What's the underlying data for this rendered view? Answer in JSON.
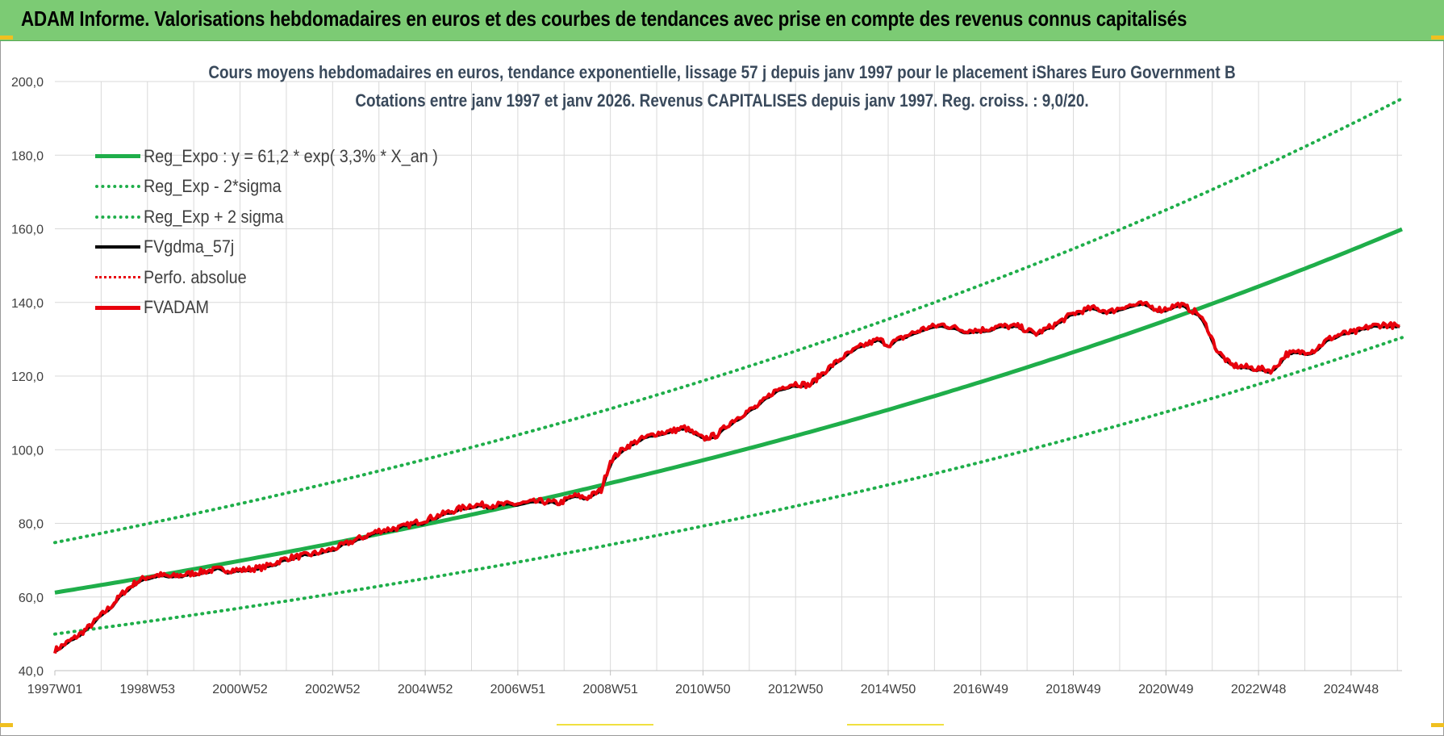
{
  "banner": {
    "title": "ADAM Informe. Valorisations hebdomadaires en euros et des courbes de tendances avec prise en compte des revenus connus capitalisés"
  },
  "colors": {
    "banner_bg": "#7ccb74",
    "trend": "#1fae4a",
    "price": "#e8000c",
    "smooth": "#000000",
    "grid": "#d9d9d9"
  },
  "chart_data": {
    "type": "line",
    "title_line1": "Cours moyens hebdomadaires en euros, tendance exponentielle, lissage 57 j depuis janv 1997 pour le placement iShares Euro Government B",
    "title_line2": "Cotations entre janv 1997 et janv 2026. Revenus CAPITALISES depuis janv 1997. Reg. croiss. : 9,0/20.",
    "xlabel": "",
    "ylabel": "",
    "ylim": [
      40,
      200
    ],
    "yticks": [
      40,
      60,
      80,
      100,
      120,
      140,
      160,
      180,
      200
    ],
    "ytick_labels": [
      "40,0",
      "60,0",
      "80,0",
      "100,0",
      "120,0",
      "140,0",
      "160,0",
      "180,0",
      "200,0"
    ],
    "xlim": [
      1997.0,
      2026.1
    ],
    "xtick_labels": [
      "1997W01",
      "1998W53",
      "2000W52",
      "2002W52",
      "2004W52",
      "2006W51",
      "2008W51",
      "2010W50",
      "2012W50",
      "2014W50",
      "2016W49",
      "2018W49",
      "2020W49",
      "2022W48",
      "2024W48"
    ],
    "xtick_values": [
      1997.0,
      1999.0,
      2001.0,
      2003.0,
      2005.0,
      2007.0,
      2009.0,
      2011.0,
      2013.0,
      2015.0,
      2017.0,
      2019.0,
      2021.0,
      2023.0,
      2025.0
    ],
    "legend": [
      {
        "key": "reg_expo",
        "label": "Reg_Expo : y = 61,2 * exp( 3,3% *  X_an )",
        "style": "solid-green"
      },
      {
        "key": "reg_minus",
        "label": "Reg_Exp - 2*sigma",
        "style": "dotted-green"
      },
      {
        "key": "reg_plus",
        "label": "Reg_Exp + 2 sigma",
        "style": "dotted-green"
      },
      {
        "key": "fvgdma",
        "label": "FVgdma_57j",
        "style": "solid-black"
      },
      {
        "key": "perfo",
        "label": "Perfo. absolue",
        "style": "dotted-red"
      },
      {
        "key": "fvadam",
        "label": "FVADAM",
        "style": "solid-red"
      }
    ],
    "trend": {
      "a": 61.2,
      "rate": 0.033,
      "sigma_factor_plus": 1.222,
      "sigma_factor_minus": 0.816
    },
    "series": [
      {
        "name": "Reg_Expo",
        "x": [
          1997,
          1999,
          2001,
          2003,
          2005,
          2007,
          2009,
          2011,
          2013,
          2015,
          2017,
          2019,
          2021,
          2023,
          2025,
          2026.1
        ],
        "values": [
          61.2,
          65.4,
          69.9,
          74.7,
          79.8,
          85.3,
          91.2,
          97.4,
          104.1,
          111.3,
          118.9,
          127.1,
          135.8,
          145.1,
          155.1,
          161.0
        ]
      },
      {
        "name": "Reg_Exp - 2*sigma",
        "x": [
          1997,
          2001,
          2005,
          2009,
          2013,
          2017,
          2021,
          2025,
          2026.1
        ],
        "values": [
          50.0,
          57.0,
          65.1,
          74.4,
          85.0,
          97.0,
          110.8,
          126.6,
          131.5
        ]
      },
      {
        "name": "Reg_Exp + 2 sigma",
        "x": [
          1997,
          2001,
          2005,
          2009,
          2013,
          2017,
          2021,
          2025,
          2026.1
        ],
        "values": [
          74.8,
          85.4,
          97.5,
          111.4,
          127.2,
          145.3,
          165.9,
          189.5,
          197.0
        ]
      },
      {
        "name": "FVADAM",
        "x": [
          1997.0,
          1997.25,
          1997.5,
          1997.75,
          1998.0,
          1998.25,
          1998.5,
          1998.75,
          1999.0,
          1999.25,
          1999.5,
          1999.75,
          2000.0,
          2000.5,
          2001.0,
          2001.5,
          2002.0,
          2002.5,
          2003.0,
          2003.5,
          2004.0,
          2004.5,
          2005.0,
          2005.5,
          2006.0,
          2006.5,
          2007.0,
          2007.5,
          2007.9,
          2008.2,
          2008.5,
          2008.8,
          2009.0,
          2009.3,
          2009.6,
          2010.0,
          2010.3,
          2010.6,
          2011.0,
          2011.3,
          2011.6,
          2011.9,
          2012.2,
          2012.5,
          2012.8,
          2013.0,
          2013.3,
          2013.6,
          2014.0,
          2014.4,
          2014.8,
          2015.0,
          2015.4,
          2015.8,
          2016.2,
          2016.6,
          2017.0,
          2017.4,
          2017.8,
          2018.2,
          2018.6,
          2019.0,
          2019.4,
          2019.8,
          2020.1,
          2020.5,
          2020.9,
          2021.3,
          2021.7,
          2021.9,
          2022.1,
          2022.4,
          2022.7,
          2023.0,
          2023.3,
          2023.6,
          2023.9,
          2024.2,
          2024.5,
          2024.8,
          2025.1,
          2025.4,
          2025.7,
          2026.05
        ],
        "values": [
          45.5,
          47.5,
          49.5,
          52.0,
          55.0,
          58.0,
          61.5,
          64.0,
          65.5,
          66.0,
          65.5,
          66.0,
          66.5,
          67.5,
          67.3,
          68.0,
          70.5,
          71.5,
          73.0,
          75.5,
          78.0,
          79.0,
          81.0,
          83.0,
          85.0,
          85.0,
          85.3,
          86.0,
          85.5,
          87.5,
          87.0,
          89.0,
          97.0,
          100.5,
          102.5,
          104.5,
          105.0,
          106.0,
          103.0,
          104.0,
          107.5,
          110.0,
          112.0,
          115.5,
          117.5,
          118.0,
          117.5,
          121.0,
          125.0,
          128.0,
          130.0,
          128.5,
          131.0,
          133.0,
          134.0,
          132.5,
          132.5,
          133.5,
          133.5,
          131.5,
          134.0,
          137.0,
          138.5,
          137.5,
          139.0,
          139.5,
          138.0,
          139.5,
          137.0,
          133.0,
          127.0,
          123.0,
          122.5,
          122.0,
          121.5,
          126.0,
          126.5,
          127.0,
          130.0,
          131.5,
          132.0,
          133.5,
          134.0,
          133.5
        ]
      }
    ]
  }
}
